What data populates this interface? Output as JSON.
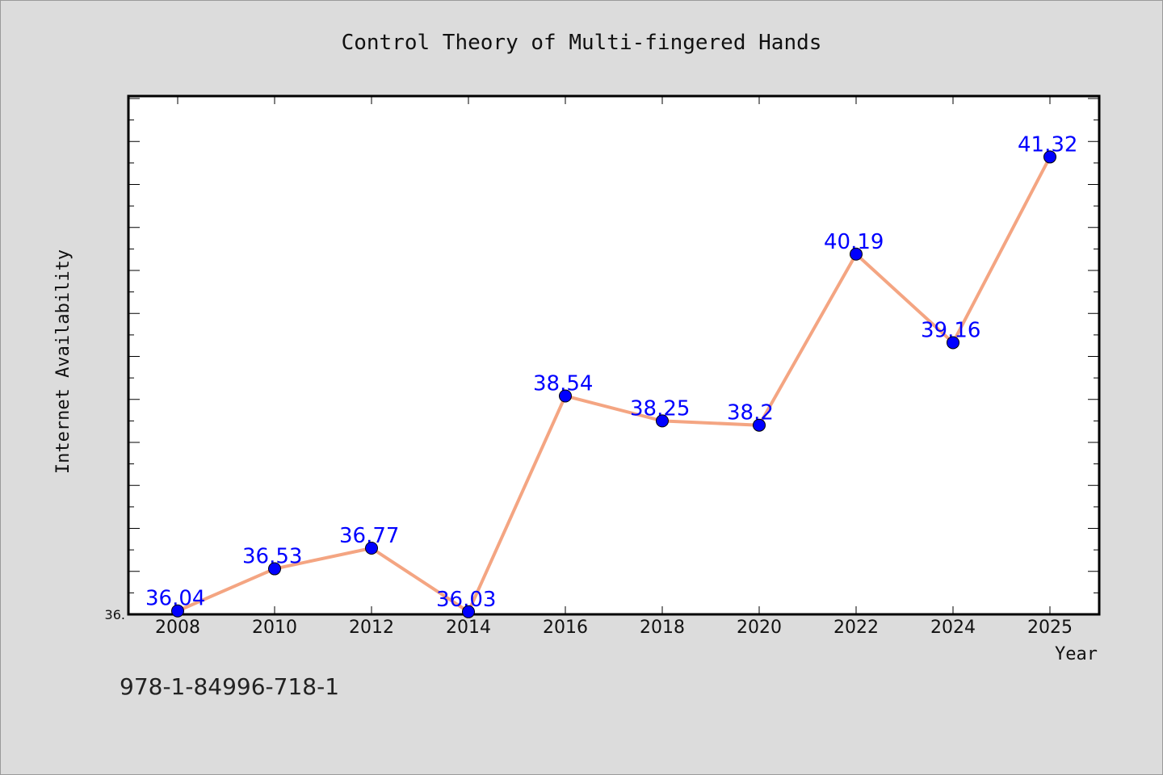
{
  "footer": {
    "isbn": "978-1-84996-718-1"
  },
  "chart_data": {
    "type": "line",
    "title": "Control Theory of Multi-fingered Hands",
    "xlabel": "Year",
    "ylabel": "Internet Availability",
    "categories": [
      "2008",
      "2010",
      "2012",
      "2014",
      "2016",
      "2018",
      "2020",
      "2022",
      "2024",
      "2025"
    ],
    "series": [
      {
        "values": [
          36.04,
          36.53,
          36.77,
          36.03,
          38.54,
          38.25,
          38.2,
          40.19,
          39.16,
          41.32
        ],
        "data_labels": [
          "36.04",
          "36.53",
          "36.77",
          "36.03",
          "38.54",
          "38.25",
          "38.2",
          "40.19",
          "39.16",
          "41.32"
        ],
        "line_color": "#f4a582",
        "marker_color": "#0000ff",
        "label_color": "#0000ff"
      }
    ],
    "y_tick_labels": [
      {
        "value": 36.0,
        "label": "36."
      }
    ],
    "ylim": [
      36.0,
      42.0
    ],
    "grid": false,
    "legend": "none",
    "colors": {
      "background": "#dcdcdc",
      "plot_background": "#ffffff",
      "axis": "#000000"
    }
  }
}
